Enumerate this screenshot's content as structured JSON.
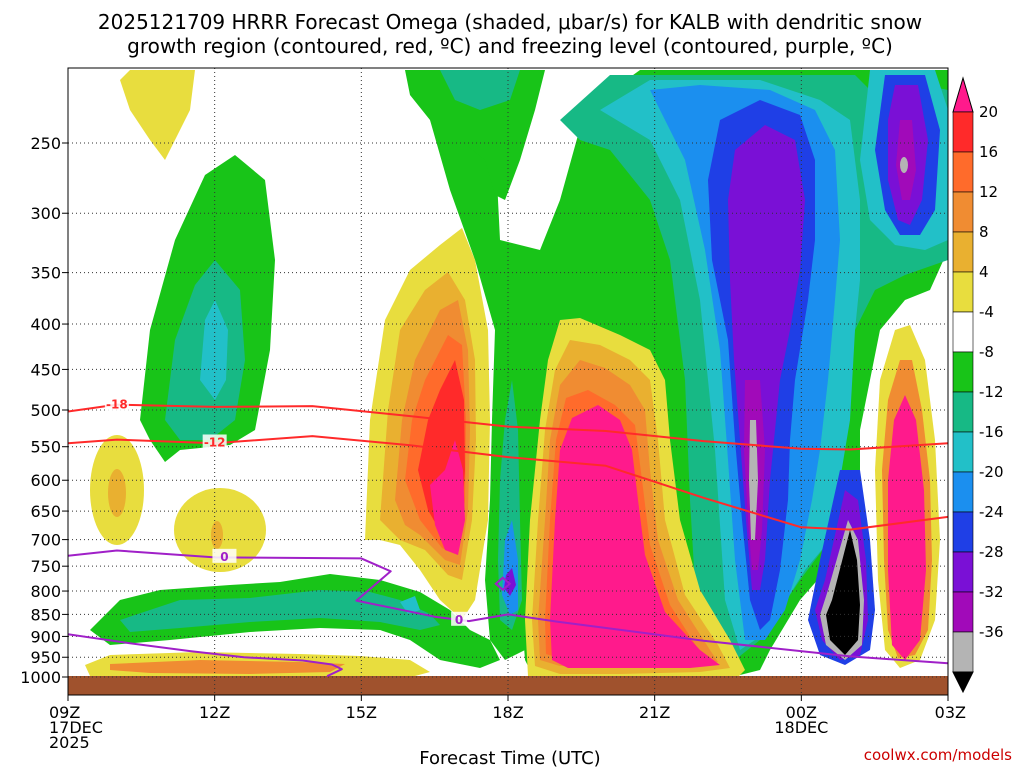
{
  "chart_data": {
    "type": "heatmap",
    "title_lines": [
      "2025121709 HRRR Forecast Omega (shaded, μbar/s) for KALB with dendritic snow",
      "growth region (contoured, red, ºC) and freezing level (contoured, purple, ºC)"
    ],
    "xlabel": "Forecast Time (UTC)",
    "credit": "coolwx.com/models",
    "x_ticks": [
      {
        "hour": 0,
        "lines": [
          "09Z",
          "17DEC",
          "2025"
        ]
      },
      {
        "hour": 3,
        "lines": [
          "12Z"
        ]
      },
      {
        "hour": 6,
        "lines": [
          "15Z"
        ]
      },
      {
        "hour": 9,
        "lines": [
          "18Z"
        ]
      },
      {
        "hour": 12,
        "lines": [
          "21Z"
        ]
      },
      {
        "hour": 15,
        "lines": [
          "00Z",
          "18DEC"
        ]
      },
      {
        "hour": 18,
        "lines": [
          "03Z"
        ]
      }
    ],
    "x_range_hours": [
      0,
      18
    ],
    "y_ticks_hpa": [
      250,
      300,
      350,
      400,
      450,
      500,
      550,
      600,
      650,
      700,
      750,
      800,
      850,
      900,
      950,
      1000
    ],
    "y_scale": "log-pressure",
    "y_range_hpa": [
      200,
      1030
    ],
    "colorbar": {
      "labels": [
        "20",
        "16",
        "12",
        "8",
        "4",
        "-4",
        "-8",
        "-12",
        "-16",
        "-20",
        "-24",
        "-28",
        "-32",
        "-36"
      ],
      "colors": [
        "#ff1a8c",
        "#ff2a2a",
        "#ff6b2b",
        "#f08c32",
        "#e9b030",
        "#e8dd3e",
        "#ffffff",
        "#18c418",
        "#17b985",
        "#22c0c8",
        "#1b8fef",
        "#1f3fe6",
        "#7a10d6",
        "#a10ab9",
        "#b4b4b4",
        "#000000"
      ]
    },
    "contours": [
      {
        "name": "dendritic snow growth -18",
        "label": "-18",
        "color": "#ff2a2a",
        "points": [
          [
            0,
            502
          ],
          [
            1,
            493
          ],
          [
            3,
            496
          ],
          [
            5,
            495
          ],
          [
            7,
            508
          ],
          [
            9,
            522
          ],
          [
            11,
            528
          ],
          [
            13,
            542
          ],
          [
            15,
            553
          ],
          [
            16,
            554
          ],
          [
            18,
            545
          ]
        ]
      },
      {
        "name": "dendritic snow growth -12",
        "label": "-12",
        "color": "#ff2a2a",
        "points": [
          [
            0,
            545
          ],
          [
            1,
            540
          ],
          [
            3,
            545
          ],
          [
            5,
            535
          ],
          [
            7,
            548
          ],
          [
            9,
            565
          ],
          [
            11,
            578
          ],
          [
            13,
            628
          ],
          [
            15,
            678
          ],
          [
            16,
            682
          ],
          [
            18,
            660
          ]
        ]
      },
      {
        "name": "freezing level 0",
        "label": "0",
        "color": "#a020c8",
        "points": [
          [
            0,
            730
          ],
          [
            1,
            720
          ],
          [
            3,
            733
          ],
          [
            6,
            735
          ],
          [
            6.6,
            760
          ],
          [
            5.9,
            820
          ],
          [
            7.5,
            855
          ],
          [
            8.2,
            865
          ],
          [
            9.0,
            850
          ],
          [
            10,
            866
          ],
          [
            13,
            910
          ],
          [
            16,
            948
          ],
          [
            18,
            965
          ]
        ]
      },
      {
        "name": "freezing level 0 lower",
        "label": "",
        "color": "#a020c8",
        "points": [
          [
            0,
            895
          ],
          [
            1.2,
            915
          ],
          [
            2.5,
            935
          ],
          [
            3.6,
            950
          ],
          [
            4.8,
            958
          ],
          [
            5.4,
            968
          ],
          [
            5.6,
            980
          ],
          [
            5.3,
            998
          ]
        ]
      }
    ],
    "terrain_color": "#a0522d",
    "terrain_top_hpa": 1000
  }
}
